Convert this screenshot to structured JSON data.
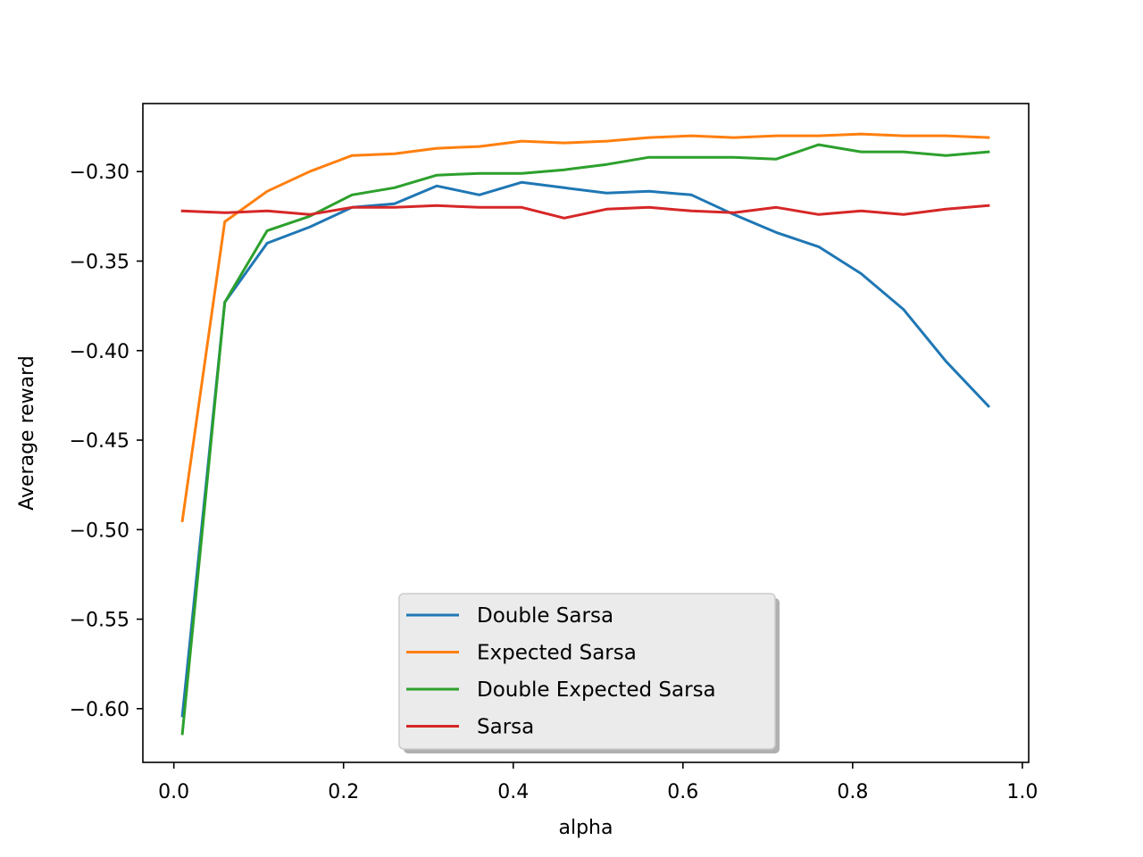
{
  "chart_data": {
    "type": "line",
    "title": "",
    "xlabel": "alpha",
    "ylabel": "Average reward",
    "xlim": [
      -0.0365,
      1.0075
    ],
    "ylim": [
      -0.63,
      -0.262
    ],
    "xticks": [
      0.0,
      0.2,
      0.4,
      0.6,
      0.8,
      1.0
    ],
    "xtick_labels": [
      "0.0",
      "0.2",
      "0.4",
      "0.6",
      "0.8",
      "1.0"
    ],
    "yticks": [
      -0.3,
      -0.35,
      -0.4,
      -0.45,
      -0.5,
      -0.55,
      -0.6
    ],
    "ytick_labels": [
      "−0.30",
      "−0.35",
      "−0.40",
      "−0.45",
      "−0.50",
      "−0.55",
      "−0.60"
    ],
    "grid": false,
    "legend_position": "lower-center",
    "x": [
      0.01,
      0.06,
      0.11,
      0.16,
      0.21,
      0.26,
      0.31,
      0.36,
      0.41,
      0.46,
      0.51,
      0.56,
      0.61,
      0.66,
      0.71,
      0.76,
      0.81,
      0.86,
      0.91,
      0.96
    ],
    "series": [
      {
        "name": "Double Sarsa",
        "color": "#1f77b4",
        "values": [
          -0.604,
          -0.373,
          -0.34,
          -0.331,
          -0.32,
          -0.318,
          -0.308,
          -0.313,
          -0.306,
          -0.309,
          -0.312,
          -0.311,
          -0.313,
          -0.324,
          -0.334,
          -0.342,
          -0.357,
          -0.377,
          -0.406,
          -0.431
        ]
      },
      {
        "name": "Expected Sarsa",
        "color": "#ff7f0e",
        "values": [
          -0.495,
          -0.328,
          -0.311,
          -0.3,
          -0.291,
          -0.29,
          -0.287,
          -0.286,
          -0.283,
          -0.284,
          -0.283,
          -0.281,
          -0.28,
          -0.281,
          -0.28,
          -0.28,
          -0.279,
          -0.28,
          -0.28,
          -0.281
        ]
      },
      {
        "name": "Double Expected Sarsa",
        "color": "#2ca02c",
        "values": [
          -0.614,
          -0.373,
          -0.333,
          -0.325,
          -0.313,
          -0.309,
          -0.302,
          -0.301,
          -0.301,
          -0.299,
          -0.296,
          -0.292,
          -0.292,
          -0.292,
          -0.293,
          -0.285,
          -0.289,
          -0.289,
          -0.291,
          -0.289
        ]
      },
      {
        "name": "Sarsa",
        "color": "#d62728",
        "values": [
          -0.322,
          -0.323,
          -0.322,
          -0.324,
          -0.32,
          -0.32,
          -0.319,
          -0.32,
          -0.32,
          -0.326,
          -0.321,
          -0.32,
          -0.322,
          -0.323,
          -0.32,
          -0.324,
          -0.322,
          -0.324,
          -0.321,
          -0.319
        ]
      }
    ]
  }
}
